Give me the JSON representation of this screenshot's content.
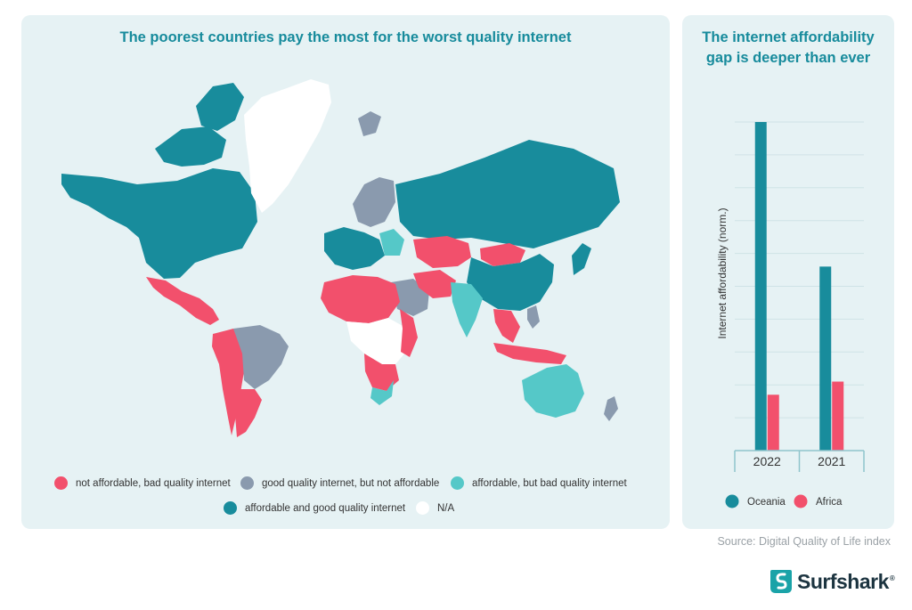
{
  "map": {
    "title": "The poorest countries pay the most for the worst quality internet",
    "legend": [
      {
        "label": "not affordable, bad quality internet",
        "color": "#f2506c"
      },
      {
        "label": "good quality internet, but not affordable",
        "color": "#8a9aae"
      },
      {
        "label": "affordable, but bad quality internet",
        "color": "#55c8c8"
      },
      {
        "label": "affordable and good quality internet",
        "color": "#188c9c"
      },
      {
        "label": "N/A",
        "color": "#ffffff"
      }
    ]
  },
  "chart_data": {
    "type": "bar",
    "title": "The internet affordability gap is deeper than ever",
    "categories": [
      "2022",
      "2021"
    ],
    "series": [
      {
        "name": "Oceania",
        "values": [
          1.0,
          0.56
        ],
        "color": "#188c9c"
      },
      {
        "name": "Africa",
        "values": [
          0.17,
          0.21
        ],
        "color": "#f2506c"
      }
    ],
    "ylabel": "Internet affordability (norm.)",
    "ylim": [
      0,
      1
    ],
    "grid": true,
    "legend_position": "bottom"
  },
  "source": "Source: Digital Quality of Life index",
  "brand": {
    "name": "Surfshark",
    "reg": "®"
  }
}
